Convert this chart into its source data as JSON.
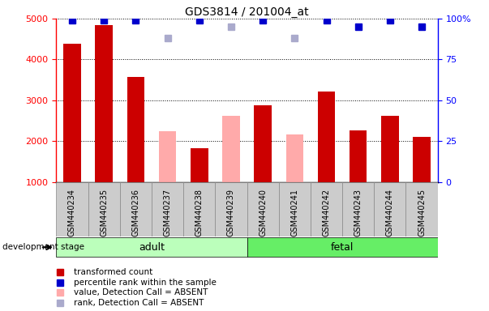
{
  "title": "GDS3814 / 201004_at",
  "samples": [
    "GSM440234",
    "GSM440235",
    "GSM440236",
    "GSM440237",
    "GSM440238",
    "GSM440239",
    "GSM440240",
    "GSM440241",
    "GSM440242",
    "GSM440243",
    "GSM440244",
    "GSM440245"
  ],
  "bar_values": [
    4380,
    4840,
    3580,
    null,
    1820,
    null,
    2870,
    null,
    3220,
    2270,
    2620,
    2100
  ],
  "bar_absent_values": [
    null,
    null,
    null,
    2240,
    null,
    2620,
    null,
    2170,
    null,
    null,
    null,
    null
  ],
  "bar_colors_present": "#cc0000",
  "bar_colors_absent": "#ffaaaa",
  "rank_present": [
    99,
    99,
    99,
    null,
    99,
    null,
    99,
    null,
    99,
    95,
    99,
    95
  ],
  "rank_absent": [
    null,
    null,
    null,
    88,
    null,
    95,
    null,
    88,
    null,
    null,
    null,
    null
  ],
  "rank_present_color": "#0000cc",
  "rank_absent_color": "#aaaacc",
  "ylim_left": [
    1000,
    5000
  ],
  "ylim_right": [
    0,
    100
  ],
  "yticks_left": [
    1000,
    2000,
    3000,
    4000,
    5000
  ],
  "yticks_right": [
    0,
    25,
    50,
    75,
    100
  ],
  "adult_indices": [
    0,
    1,
    2,
    3,
    4,
    5
  ],
  "fetal_indices": [
    6,
    7,
    8,
    9,
    10,
    11
  ],
  "adult_color": "#bbffbb",
  "fetal_color": "#66ee66",
  "adult_label": "adult",
  "fetal_label": "fetal",
  "stage_label": "development stage",
  "legend_items": [
    {
      "label": "transformed count",
      "color": "#cc0000"
    },
    {
      "label": "percentile rank within the sample",
      "color": "#0000cc"
    },
    {
      "label": "value, Detection Call = ABSENT",
      "color": "#ffaaaa"
    },
    {
      "label": "rank, Detection Call = ABSENT",
      "color": "#aaaacc"
    }
  ],
  "bar_width": 0.55,
  "rank_marker_size": 6,
  "cell_bg_color": "#cccccc",
  "cell_border_color": "#888888"
}
